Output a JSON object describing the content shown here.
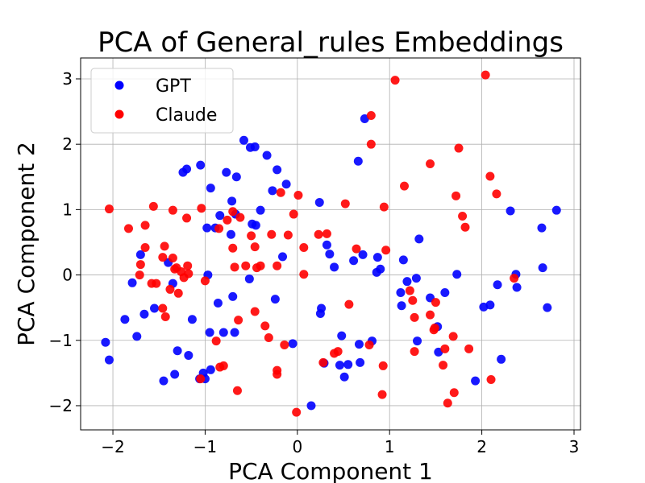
{
  "chart_data": {
    "type": "scatter",
    "title": "PCA of General_rules Embeddings",
    "xlabel": "PCA Component 1",
    "ylabel": "PCA Component 2",
    "xlim": [
      -2.35,
      3.07
    ],
    "ylim": [
      -2.37,
      3.32
    ],
    "xticks": [
      -2,
      -1,
      0,
      1,
      2,
      3
    ],
    "yticks": [
      -2,
      -1,
      0,
      1,
      2,
      3
    ],
    "xtick_labels": [
      "−2",
      "−1",
      "0",
      "1",
      "2",
      "3"
    ],
    "ytick_labels": [
      "−2",
      "−1",
      "0",
      "1",
      "2",
      "3"
    ],
    "grid": true,
    "legend_position": "top-left",
    "series": [
      {
        "name": "GPT",
        "color": "#0000ff",
        "points": [
          [
            -2.08,
            -1.03
          ],
          [
            -2.04,
            -1.3
          ],
          [
            -1.87,
            -0.68
          ],
          [
            -1.79,
            -0.12
          ],
          [
            -1.74,
            -0.94
          ],
          [
            -1.7,
            0.31
          ],
          [
            -1.66,
            -0.6
          ],
          [
            -1.55,
            -0.51
          ],
          [
            -1.45,
            -1.62
          ],
          [
            -1.4,
            0.19
          ],
          [
            -1.35,
            -0.13
          ],
          [
            -1.33,
            -1.52
          ],
          [
            -1.3,
            -1.16
          ],
          [
            -1.24,
            1.57
          ],
          [
            -1.2,
            1.62
          ],
          [
            -1.18,
            -1.23
          ],
          [
            -1.14,
            -0.68
          ],
          [
            -1.06,
            -1.59
          ],
          [
            -1.05,
            1.68
          ],
          [
            -1.02,
            -1.5
          ],
          [
            -1.0,
            -1.59
          ],
          [
            -0.98,
            0.72
          ],
          [
            -0.97,
            0.0
          ],
          [
            -0.95,
            -0.88
          ],
          [
            -0.94,
            -1.45
          ],
          [
            -0.94,
            1.33
          ],
          [
            -0.89,
            0.72
          ],
          [
            -0.86,
            -0.43
          ],
          [
            -0.84,
            0.91
          ],
          [
            -0.8,
            -0.88
          ],
          [
            -0.77,
            1.57
          ],
          [
            -0.72,
            0.62
          ],
          [
            -0.71,
            1.13
          ],
          [
            -0.7,
            -0.33
          ],
          [
            -0.68,
            -0.88
          ],
          [
            -0.67,
            0.93
          ],
          [
            -0.66,
            1.5
          ],
          [
            -0.58,
            2.06
          ],
          [
            -0.52,
            -0.06
          ],
          [
            -0.51,
            1.95
          ],
          [
            -0.49,
            0.78
          ],
          [
            -0.46,
            1.96
          ],
          [
            -0.45,
            0.76
          ],
          [
            -0.4,
            0.99
          ],
          [
            -0.33,
            1.83
          ],
          [
            -0.27,
            1.29
          ],
          [
            -0.24,
            -0.37
          ],
          [
            -0.22,
            1.61
          ],
          [
            -0.16,
            0.28
          ],
          [
            -0.12,
            1.39
          ],
          [
            -0.05,
            -1.05
          ],
          [
            0.15,
            -2.0
          ],
          [
            0.24,
            1.11
          ],
          [
            0.25,
            -0.59
          ],
          [
            0.26,
            -0.51
          ],
          [
            0.29,
            -1.35
          ],
          [
            0.32,
            0.46
          ],
          [
            0.35,
            0.32
          ],
          [
            0.4,
            0.12
          ],
          [
            0.46,
            -1.38
          ],
          [
            0.48,
            -0.93
          ],
          [
            0.51,
            -1.56
          ],
          [
            0.55,
            -1.37
          ],
          [
            0.61,
            0.22
          ],
          [
            0.66,
            1.74
          ],
          [
            0.67,
            -1.06
          ],
          [
            0.68,
            -1.34
          ],
          [
            0.71,
            0.31
          ],
          [
            0.73,
            2.39
          ],
          [
            0.81,
            -1.01
          ],
          [
            0.86,
            0.04
          ],
          [
            0.87,
            0.27
          ],
          [
            0.9,
            0.09
          ],
          [
            1.12,
            -0.27
          ],
          [
            1.13,
            -0.47
          ],
          [
            1.15,
            0.23
          ],
          [
            1.19,
            -0.1
          ],
          [
            1.29,
            -0.05
          ],
          [
            1.3,
            -1.01
          ],
          [
            1.32,
            0.55
          ],
          [
            1.44,
            -0.35
          ],
          [
            1.52,
            -0.79
          ],
          [
            1.53,
            -1.18
          ],
          [
            1.6,
            -0.27
          ],
          [
            1.73,
            0.01
          ],
          [
            1.93,
            -1.62
          ],
          [
            2.02,
            -0.49
          ],
          [
            2.09,
            -0.46
          ],
          [
            2.17,
            -0.15
          ],
          [
            2.21,
            -1.29
          ],
          [
            2.31,
            0.98
          ],
          [
            2.37,
            0.01
          ],
          [
            2.38,
            -0.19
          ],
          [
            2.65,
            0.72
          ],
          [
            2.66,
            0.11
          ],
          [
            2.71,
            -0.5
          ],
          [
            2.81,
            0.99
          ]
        ]
      },
      {
        "name": "Claude",
        "color": "#ff0000",
        "points": [
          [
            -2.04,
            1.01
          ],
          [
            -1.83,
            0.71
          ],
          [
            -1.7,
            0.16
          ],
          [
            -1.71,
            0.0
          ],
          [
            -1.65,
            0.42
          ],
          [
            -1.65,
            0.76
          ],
          [
            -1.58,
            -0.13
          ],
          [
            -1.56,
            1.05
          ],
          [
            -1.53,
            -0.13
          ],
          [
            -1.46,
            -0.51
          ],
          [
            -1.46,
            0.27
          ],
          [
            -1.44,
            0.44
          ],
          [
            -1.43,
            -0.64
          ],
          [
            -1.38,
            -0.22
          ],
          [
            -1.35,
            0.99
          ],
          [
            -1.35,
            0.26
          ],
          [
            -1.33,
            0.09
          ],
          [
            -1.31,
            0.11
          ],
          [
            -1.29,
            -0.28
          ],
          [
            -1.26,
            0.05
          ],
          [
            -1.23,
            -0.04
          ],
          [
            -1.2,
            0.87
          ],
          [
            -1.19,
            0.14
          ],
          [
            -1.18,
            0.02
          ],
          [
            -1.05,
            -1.59
          ],
          [
            -1.04,
            1.02
          ],
          [
            -1.0,
            -0.09
          ],
          [
            -0.88,
            -1.01
          ],
          [
            -0.85,
            0.71
          ],
          [
            -0.84,
            -1.41
          ],
          [
            -0.8,
            -1.39
          ],
          [
            -0.76,
            0.84
          ],
          [
            -0.7,
            0.41
          ],
          [
            -0.7,
            0.97
          ],
          [
            -0.68,
            0.12
          ],
          [
            -0.65,
            -1.77
          ],
          [
            -0.64,
            -0.69
          ],
          [
            -0.62,
            0.88
          ],
          [
            -0.56,
            0.14
          ],
          [
            -0.5,
            0.6
          ],
          [
            -0.46,
            -0.56
          ],
          [
            -0.46,
            0.43
          ],
          [
            -0.44,
            0.11
          ],
          [
            -0.4,
            0.14
          ],
          [
            -0.35,
            -0.78
          ],
          [
            -0.31,
            -0.96
          ],
          [
            -0.28,
            0.62
          ],
          [
            -0.22,
            -1.46
          ],
          [
            -0.22,
            -1.52
          ],
          [
            -0.22,
            0.14
          ],
          [
            -0.18,
            1.26
          ],
          [
            -0.14,
            -1.07
          ],
          [
            -0.1,
            0.61
          ],
          [
            -0.04,
            0.93
          ],
          [
            -0.01,
            -2.1
          ],
          [
            0.01,
            1.22
          ],
          [
            0.07,
            0.01
          ],
          [
            0.07,
            0.42
          ],
          [
            0.23,
            0.62
          ],
          [
            0.28,
            -1.34
          ],
          [
            0.32,
            0.63
          ],
          [
            0.4,
            -1.2
          ],
          [
            0.44,
            -1.17
          ],
          [
            0.52,
            1.09
          ],
          [
            0.56,
            -0.45
          ],
          [
            0.64,
            0.4
          ],
          [
            0.78,
            -1.07
          ],
          [
            0.8,
            2.0
          ],
          [
            0.8,
            2.44
          ],
          [
            0.92,
            -1.83
          ],
          [
            0.93,
            -1.39
          ],
          [
            0.94,
            1.04
          ],
          [
            0.96,
            0.38
          ],
          [
            1.06,
            2.98
          ],
          [
            1.16,
            1.36
          ],
          [
            1.22,
            -0.24
          ],
          [
            1.25,
            -0.39
          ],
          [
            1.27,
            -0.65
          ],
          [
            1.27,
            -1.17
          ],
          [
            1.44,
            1.7
          ],
          [
            1.44,
            -0.61
          ],
          [
            1.48,
            -0.84
          ],
          [
            1.49,
            -0.81
          ],
          [
            1.5,
            -0.42
          ],
          [
            1.58,
            -1.38
          ],
          [
            1.6,
            -1.13
          ],
          [
            1.63,
            -1.96
          ],
          [
            1.69,
            -0.94
          ],
          [
            1.7,
            -1.8
          ],
          [
            1.72,
            1.21
          ],
          [
            1.75,
            1.94
          ],
          [
            1.79,
            0.9
          ],
          [
            1.82,
            0.73
          ],
          [
            1.86,
            -1.13
          ],
          [
            2.04,
            3.06
          ],
          [
            2.09,
            1.51
          ],
          [
            2.1,
            -1.6
          ],
          [
            2.16,
            1.24
          ],
          [
            2.35,
            -0.05
          ]
        ]
      }
    ]
  }
}
